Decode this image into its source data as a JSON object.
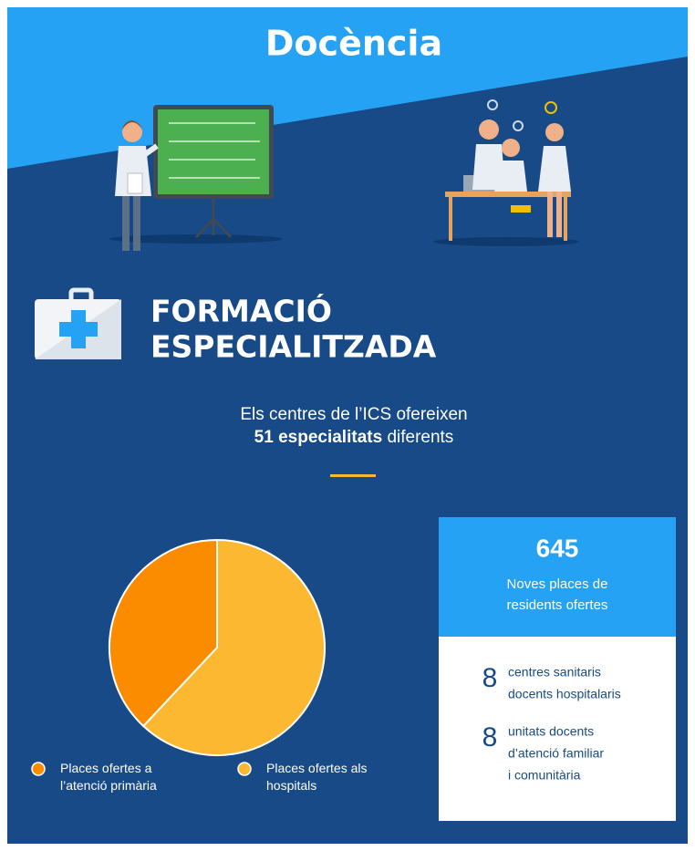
{
  "header": {
    "title": "Docència"
  },
  "section": {
    "title_lines": [
      "FORMACIÓ",
      "ESPECIALITZADA"
    ]
  },
  "intro": {
    "line1": "Els centres de l’ICS ofereixen",
    "line2_bold": "51 especialitats",
    "line2_rest": "diferents"
  },
  "chart_data": {
    "type": "pie",
    "categories": [
      "Places ofertes a l’atenció primària",
      "Places ofertes als hospitals"
    ],
    "values": [
      38,
      62
    ],
    "colors": [
      "#fb8c00",
      "#fdb831"
    ]
  },
  "stats": {
    "total": {
      "value": 645,
      "lines": [
        "Noves places de",
        "residents ofertes"
      ]
    },
    "items": [
      {
        "value": 8,
        "lines": [
          "centres sanitaris",
          "docents hospitalaris"
        ]
      },
      {
        "value": 8,
        "lines": [
          "unitats docents",
          "d’atenció familiar",
          "i comunitària"
        ]
      }
    ]
  }
}
